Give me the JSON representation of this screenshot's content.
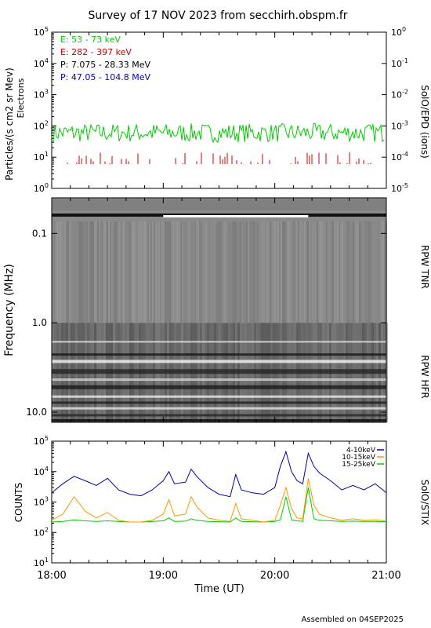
{
  "title": "Survey of 17 NOV 2023 from secchirh.obspm.fr",
  "footer": "Assembled on 04SEP2025",
  "colors": {
    "electrons_low": "#00cc00",
    "electrons_high": "#cc0000",
    "protons_low": "#000000",
    "protons_high": "#0000cc",
    "stix_low": "#0000aa",
    "stix_mid": "#ff9900",
    "stix_high": "#00cc00"
  },
  "chart_data": [
    {
      "type": "line",
      "panel": "SolO/EPD",
      "ylabel": "Particles/(s cm2 sr Mev)",
      "ylabel_sub": "Electrons",
      "right_label": "SolO/EPD (ions)",
      "yscale": "log",
      "ylim": [
        1,
        100000
      ],
      "yticks": [
        "10^0",
        "10^1",
        "10^2",
        "10^3",
        "10^4",
        "10^5"
      ],
      "y2scale": "log",
      "y2lim": [
        1e-05,
        1
      ],
      "y2ticks": [
        "10^-5",
        "10^-4",
        "10^-3",
        "10^-2",
        "10^-1",
        "10^0"
      ],
      "legend_position": "top-left",
      "series": [
        {
          "name": "E: 53 - 73 keV",
          "color": "#00cc00",
          "approx_range": [
            30,
            120
          ]
        },
        {
          "name": "E: 282 - 397 keV",
          "color": "#cc0000",
          "approx_range": [
            6,
            15
          ]
        },
        {
          "name": "P: 7.075 - 28.33 MeV",
          "color": "#000000",
          "approx_range": null
        },
        {
          "name": "P: 47.05 - 104.8 MeV",
          "color": "#0000cc",
          "approx_range": null
        }
      ]
    },
    {
      "type": "heatmap",
      "panel": "RPW",
      "ylabel": "Frequency (MHz)",
      "yscale": "log",
      "yinverted": true,
      "ylim": [
        0.04,
        13
      ],
      "yticks": [
        "0.1",
        "1.0",
        "10.0"
      ],
      "right_labels": [
        "RPW TNR",
        "RPW HFR"
      ],
      "tnr_band_mhz": [
        0.04,
        1.0
      ],
      "hfr_band_mhz": [
        1.0,
        13
      ]
    },
    {
      "type": "line",
      "panel": "SolO/STIX",
      "ylabel": "COUNTS",
      "right_label": "SolO/STIX",
      "yscale": "log",
      "ylim": [
        10,
        100000
      ],
      "yticks": [
        "10^1",
        "10^2",
        "10^3",
        "10^4",
        "10^5"
      ],
      "legend_position": "top-right",
      "x_hours": [
        18.0,
        18.1,
        18.2,
        18.3,
        18.4,
        18.5,
        18.6,
        18.7,
        18.8,
        18.9,
        19.0,
        19.05,
        19.1,
        19.2,
        19.25,
        19.3,
        19.4,
        19.5,
        19.6,
        19.65,
        19.7,
        19.8,
        19.9,
        20.0,
        20.05,
        20.1,
        20.15,
        20.2,
        20.25,
        20.3,
        20.35,
        20.4,
        20.5,
        20.6,
        20.7,
        20.8,
        20.9,
        21.0
      ],
      "series": [
        {
          "name": "4-10keV",
          "color": "#0000aa",
          "values": [
            2000,
            4000,
            7000,
            5000,
            3500,
            6000,
            2500,
            1800,
            1600,
            2500,
            5000,
            10000,
            4000,
            4500,
            12000,
            7000,
            3000,
            1800,
            1500,
            8000,
            2500,
            2000,
            1800,
            3000,
            15000,
            45000,
            10000,
            5000,
            4000,
            40000,
            15000,
            9000,
            5000,
            2500,
            3500,
            2500,
            4000,
            2000
          ]
        },
        {
          "name": "10-15keV",
          "color": "#ff9900",
          "values": [
            250,
            400,
            1500,
            500,
            300,
            450,
            250,
            220,
            220,
            250,
            400,
            1200,
            350,
            400,
            1500,
            700,
            300,
            250,
            230,
            900,
            280,
            250,
            220,
            250,
            800,
            3000,
            600,
            300,
            280,
            6000,
            800,
            400,
            300,
            250,
            280,
            250,
            260,
            240
          ]
        },
        {
          "name": "15-25keV",
          "color": "#00cc00",
          "values": [
            220,
            230,
            260,
            240,
            230,
            240,
            230,
            220,
            220,
            230,
            240,
            300,
            230,
            235,
            280,
            250,
            230,
            225,
            220,
            300,
            230,
            225,
            220,
            230,
            260,
            1500,
            260,
            240,
            230,
            3000,
            280,
            250,
            240,
            230,
            235,
            230,
            230,
            225
          ]
        }
      ]
    }
  ],
  "xaxis": {
    "label": "Time (UT)",
    "range_hours": [
      18,
      21
    ],
    "ticks": [
      {
        "hour": 18,
        "label": "18:00"
      },
      {
        "hour": 19,
        "label": "19:00"
      },
      {
        "hour": 20,
        "label": "20:00"
      },
      {
        "hour": 21,
        "label": "21:00"
      }
    ]
  }
}
